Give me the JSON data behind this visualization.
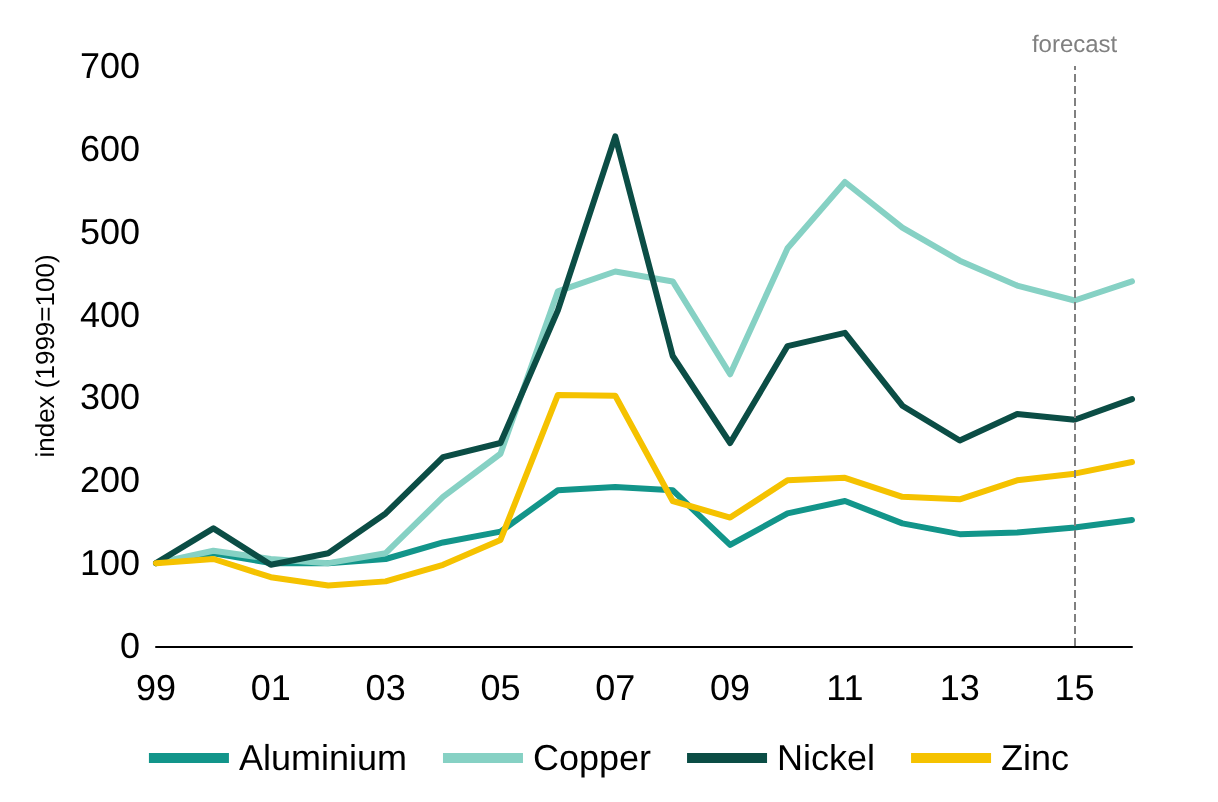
{
  "chart_data": {
    "type": "line",
    "ylabel": "index (1999=100)",
    "categories": [
      "99",
      null,
      "01",
      null,
      "03",
      null,
      "05",
      null,
      "07",
      null,
      "09",
      null,
      "11",
      null,
      "13",
      null,
      "15",
      null
    ],
    "series": [
      {
        "name": "Aluminium",
        "color": "#12958a",
        "values": [
          100,
          112,
          100,
          100,
          105,
          125,
          138,
          188,
          192,
          188,
          122,
          160,
          175,
          148,
          135,
          137,
          143,
          152
        ]
      },
      {
        "name": "Copper",
        "color": "#86d1c4",
        "values": [
          100,
          115,
          105,
          100,
          112,
          180,
          232,
          428,
          452,
          440,
          328,
          480,
          560,
          505,
          465,
          435,
          417,
          440
        ]
      },
      {
        "name": "Nickel",
        "color": "#0b4d45",
        "values": [
          100,
          142,
          98,
          112,
          160,
          228,
          245,
          405,
          615,
          350,
          245,
          362,
          378,
          290,
          248,
          280,
          273,
          298
        ]
      },
      {
        "name": "Zinc",
        "color": "#f5c200",
        "values": [
          100,
          105,
          83,
          73,
          78,
          98,
          128,
          303,
          302,
          175,
          155,
          200,
          203,
          180,
          177,
          200,
          208,
          222
        ]
      }
    ],
    "ylim": [
      0,
      700
    ],
    "yticks": [
      0,
      100,
      200,
      300,
      400,
      500,
      600,
      700
    ],
    "grid": false,
    "legend": "bottom",
    "marker": "none",
    "line_style": "solid",
    "ref_lines": [
      {
        "axis": "x",
        "value": "15",
        "label": "forecast",
        "color": "#808080",
        "line_style": "dashed"
      }
    ]
  }
}
